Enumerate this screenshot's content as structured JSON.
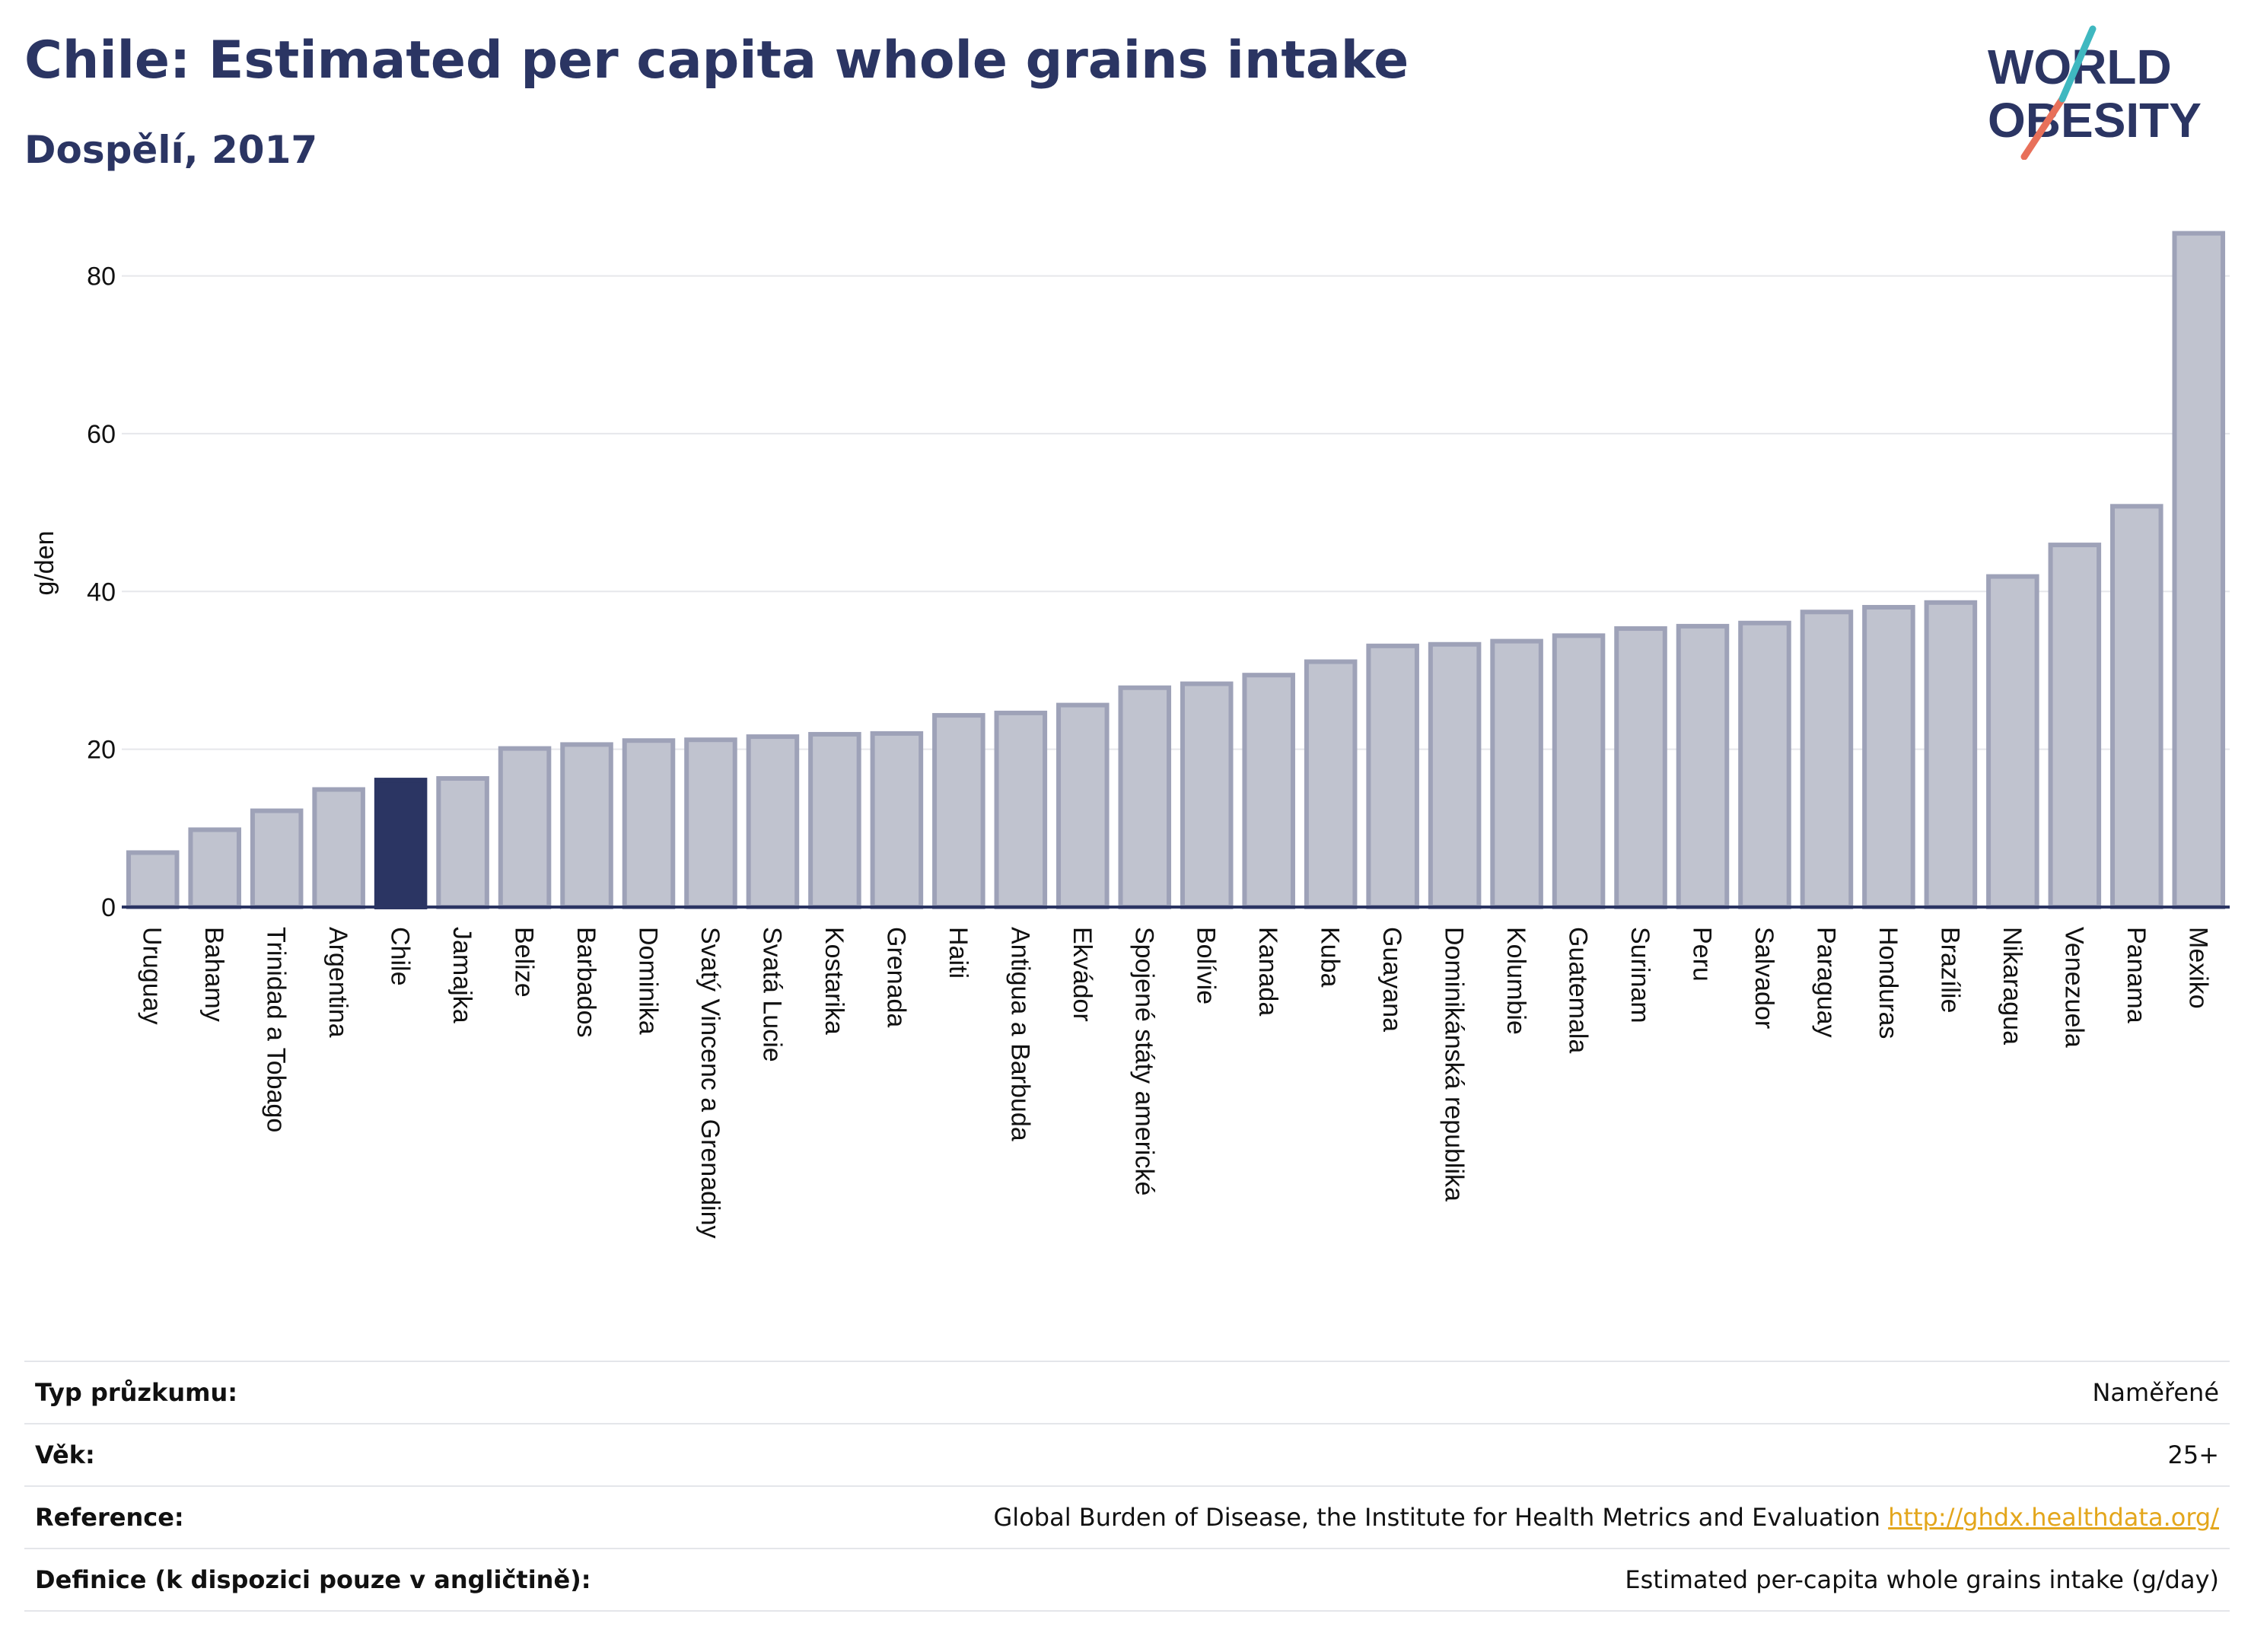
{
  "header": {
    "title": "Chile: Estimated per capita whole grains intake",
    "subtitle": "Dospělí, 2017"
  },
  "logo": {
    "line1": "WORLD",
    "line2": "OBESITY",
    "colors": {
      "text": "#2b3563",
      "slash_teal": "#3fb8c0",
      "slash_coral": "#e8705a"
    }
  },
  "colors": {
    "highlight_bar": "#2b3563",
    "other_bar_fill": "#c0c3cf",
    "other_bar_stroke": "#9ea2b8",
    "axis_line": "#2b3563",
    "grid": "#e6e7eb"
  },
  "chart_data": {
    "type": "bar",
    "title": "Chile: Estimated per capita whole grains intake",
    "subtitle": "Dospělí, 2017",
    "ylabel": "g/den",
    "xlabel": "",
    "ylim": [
      0,
      87
    ],
    "yticks": [
      0,
      20,
      40,
      60,
      80
    ],
    "grid": true,
    "highlight": "Chile",
    "categories": [
      "Uruguay",
      "Bahamy",
      "Trinidad a Tobago",
      "Argentina",
      "Chile",
      "Jamajka",
      "Belize",
      "Barbados",
      "Dominika",
      "Svatý Vincenc a Grenadiny",
      "Svatá Lucie",
      "Kostarika",
      "Grenada",
      "Haiti",
      "Antigua a Barbuda",
      "Ekvádor",
      "Spojené státy americké",
      "Bolívie",
      "Kanada",
      "Kuba",
      "Guayana",
      "Dominikánská republika",
      "Kolumbie",
      "Guatemala",
      "Surinam",
      "Peru",
      "Salvador",
      "Paraguay",
      "Honduras",
      "Brazílie",
      "Nikaragua",
      "Venezuela",
      "Panama",
      "Mexiko"
    ],
    "values": [
      6.9,
      9.8,
      12.2,
      14.9,
      16.1,
      16.3,
      20.1,
      20.6,
      21.1,
      21.2,
      21.6,
      21.9,
      22.0,
      24.3,
      24.6,
      25.6,
      27.8,
      28.3,
      29.4,
      31.1,
      33.1,
      33.3,
      33.7,
      34.4,
      35.3,
      35.6,
      36.0,
      37.4,
      38.0,
      38.6,
      41.9,
      45.9,
      50.8,
      85.4
    ]
  },
  "info": {
    "rows": [
      {
        "label": "Typ průzkumu:",
        "value": "Naměřené"
      },
      {
        "label": "Věk:",
        "value": "25+"
      },
      {
        "label": "Reference:",
        "value": "Global Burden of Disease, the Institute for Health Metrics and Evaluation",
        "link": "http://ghdx.healthdata.org/"
      },
      {
        "label": "Definice (k dispozici pouze v angličtině):",
        "value": "Estimated per-capita whole grains intake (g/day)"
      }
    ]
  }
}
